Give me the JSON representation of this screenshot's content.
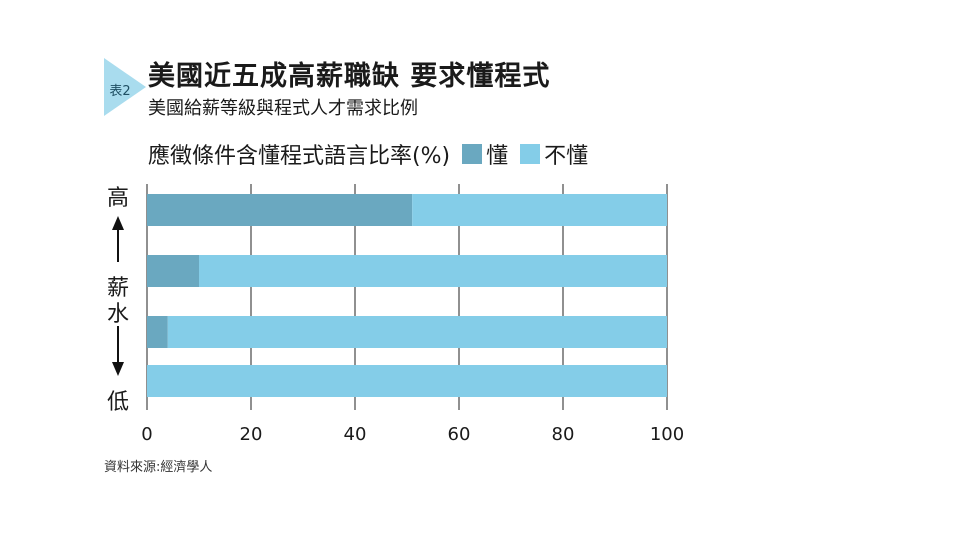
{
  "badge": "表2",
  "title": "美國近五成高薪職缺 要求懂程式",
  "subtitle": "美國給薪等級與程式人才需求比例",
  "legend": {
    "heading": "應徵條件含懂程式語言比率(%)",
    "items": [
      {
        "label": "懂",
        "color": "#6aa8c0"
      },
      {
        "label": "不懂",
        "color": "#84cde8"
      }
    ]
  },
  "axis": {
    "side_high": "高",
    "side_mid_1": "薪",
    "side_mid_2": "水",
    "side_low": "低"
  },
  "source": "資料來源:經濟學人",
  "chart_data": {
    "type": "bar",
    "orientation": "horizontal",
    "stacked": true,
    "categories": [
      "",
      "",
      "",
      ""
    ],
    "series": [
      {
        "name": "懂",
        "values": [
          51,
          10,
          4,
          0
        ],
        "color": "#6aa8c0"
      },
      {
        "name": "不懂",
        "values": [
          49,
          90,
          96,
          100
        ],
        "color": "#84cde8"
      }
    ],
    "xlim": [
      0,
      100
    ],
    "xticks": [
      "0",
      "20",
      "40",
      "60",
      "80",
      "100"
    ],
    "grid": true,
    "legend_position": "top"
  }
}
